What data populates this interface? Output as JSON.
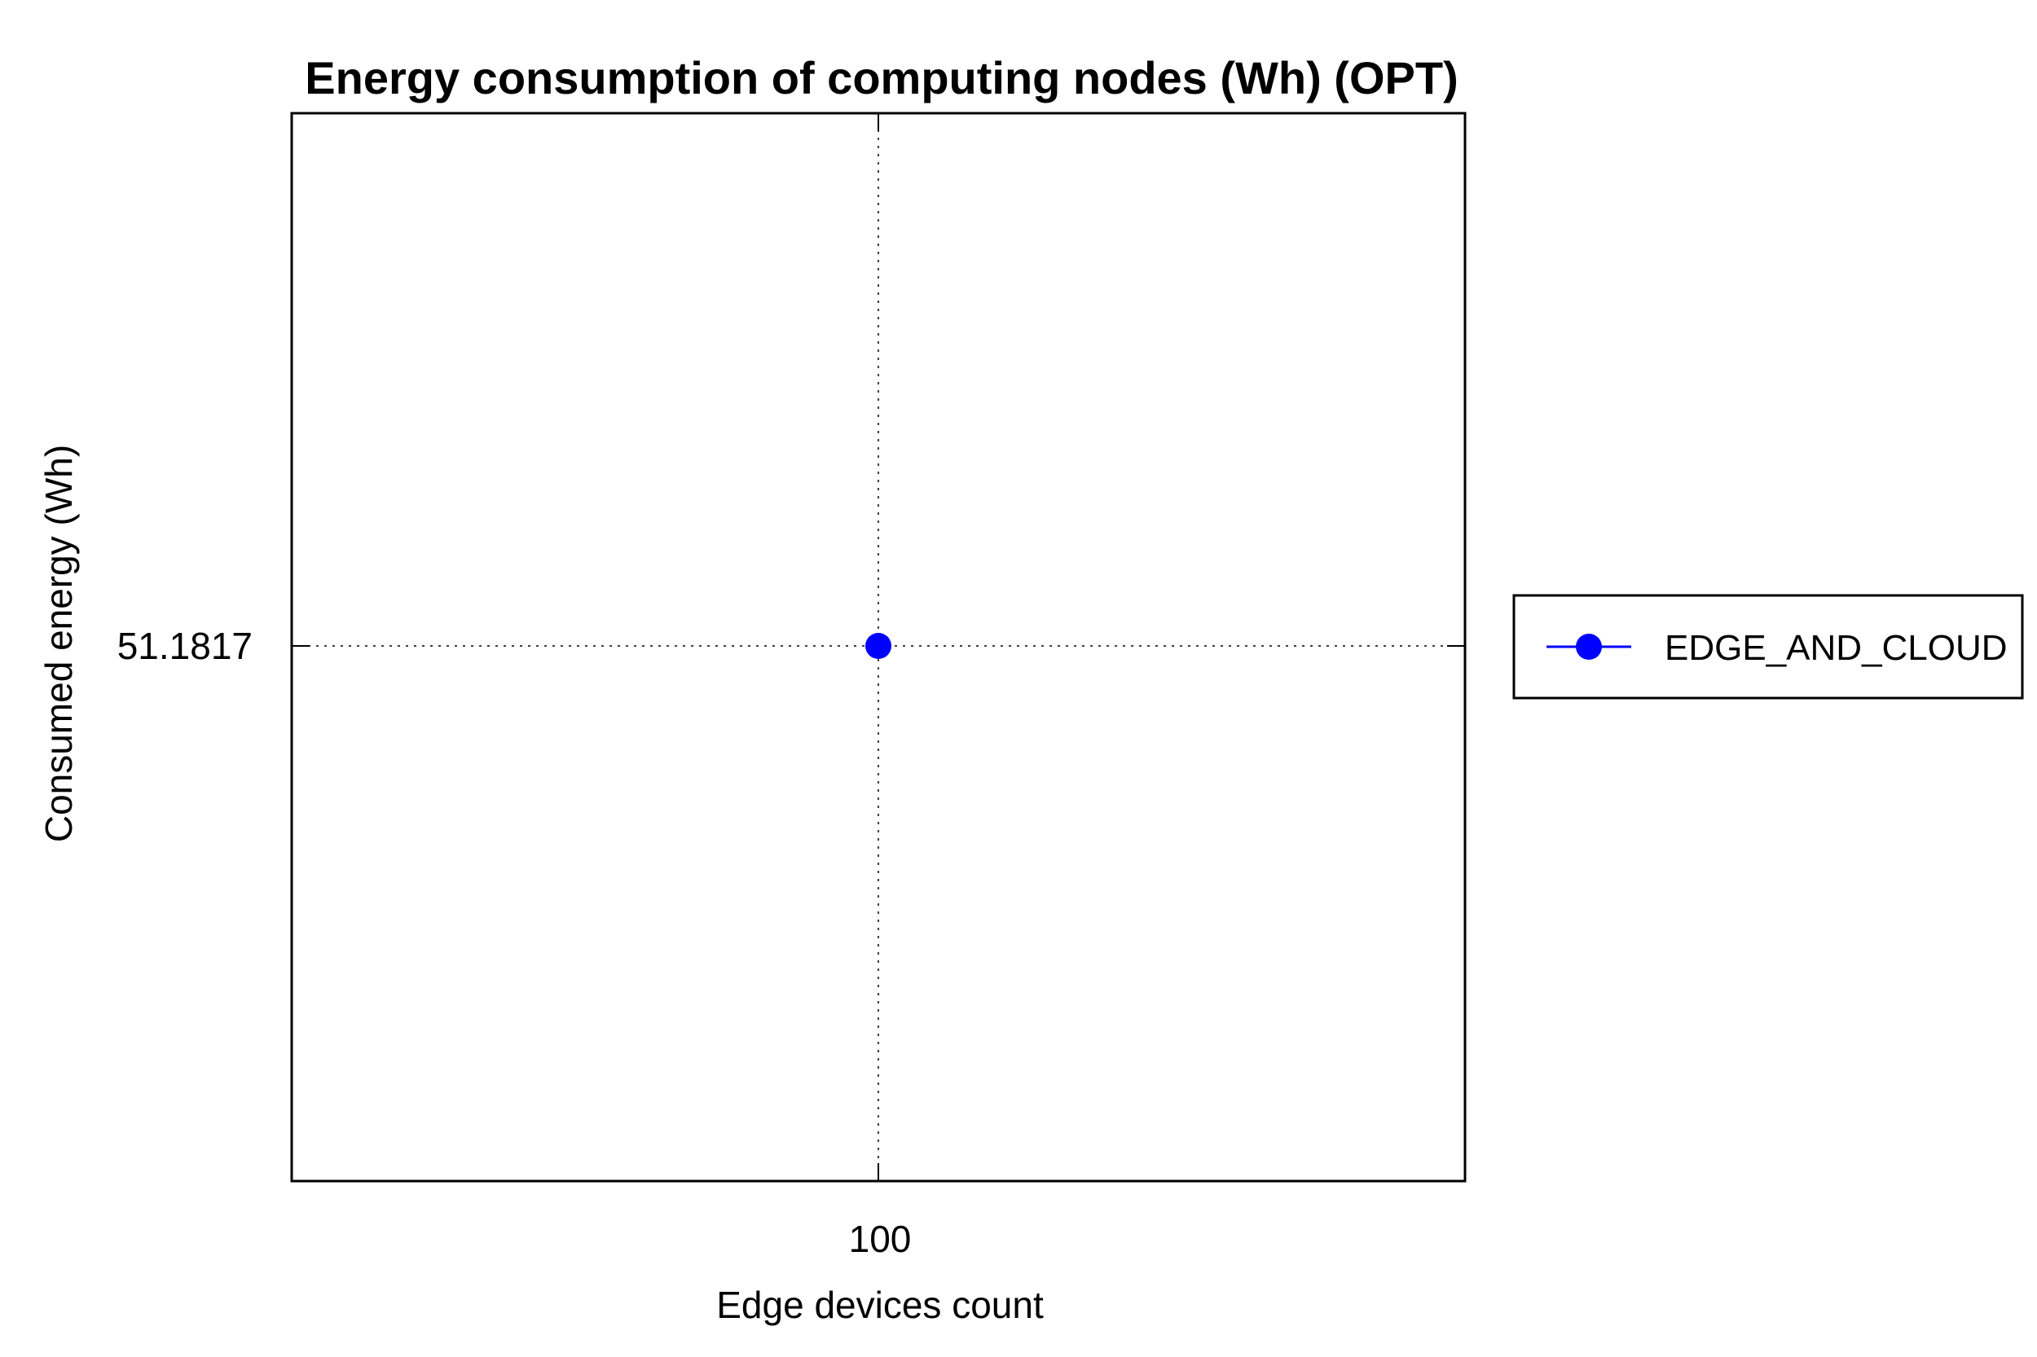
{
  "chart_data": {
    "type": "line",
    "title": "Energy consumption of computing nodes (Wh) (OPT)",
    "xlabel": "Edge devices count",
    "ylabel": "Consumed energy (Wh)",
    "x_ticks": [
      "100"
    ],
    "y_ticks": [
      "51.1817"
    ],
    "grid": true,
    "legend_position": "right",
    "series": [
      {
        "name": "EDGE_AND_CLOUD",
        "color": "#0000ff",
        "marker": "circle",
        "x": [
          100
        ],
        "y": [
          51.1817
        ]
      }
    ]
  }
}
